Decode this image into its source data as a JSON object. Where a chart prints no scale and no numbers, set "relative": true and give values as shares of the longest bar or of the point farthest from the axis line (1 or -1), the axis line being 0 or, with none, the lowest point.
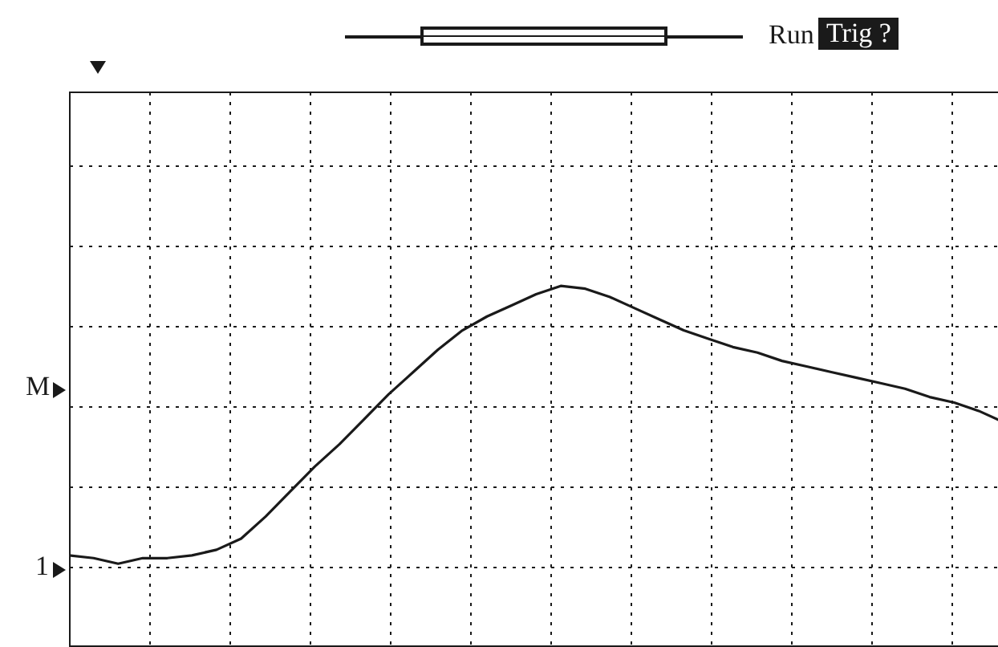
{
  "chart_data": {
    "type": "line",
    "relative": true,
    "grid": true,
    "categories": [
      null,
      null,
      null,
      null,
      null,
      null,
      null,
      null,
      null,
      null,
      null,
      null,
      null,
      null,
      null,
      null,
      null,
      null,
      null,
      null,
      null,
      null,
      null,
      null,
      null,
      null,
      null,
      null,
      null,
      null,
      null,
      null,
      null,
      null,
      null,
      null,
      null,
      null,
      null
    ],
    "series": [
      {
        "color": "#1a1a1a",
        "values": [
          0.03,
          0.02,
          0.0,
          0.02,
          0.02,
          0.03,
          0.05,
          0.09,
          0.17,
          0.26,
          0.35,
          0.43,
          0.52,
          0.61,
          0.69,
          0.77,
          0.84,
          0.89,
          0.93,
          0.97,
          1.0,
          0.99,
          0.96,
          0.92,
          0.88,
          0.84,
          0.81,
          0.78,
          0.76,
          0.73,
          0.71,
          0.69,
          0.67,
          0.65,
          0.63,
          0.6,
          0.58,
          0.55,
          0.51
        ]
      }
    ],
    "annotations": [
      "Run",
      "Trig ?",
      "M",
      "1"
    ]
  }
}
